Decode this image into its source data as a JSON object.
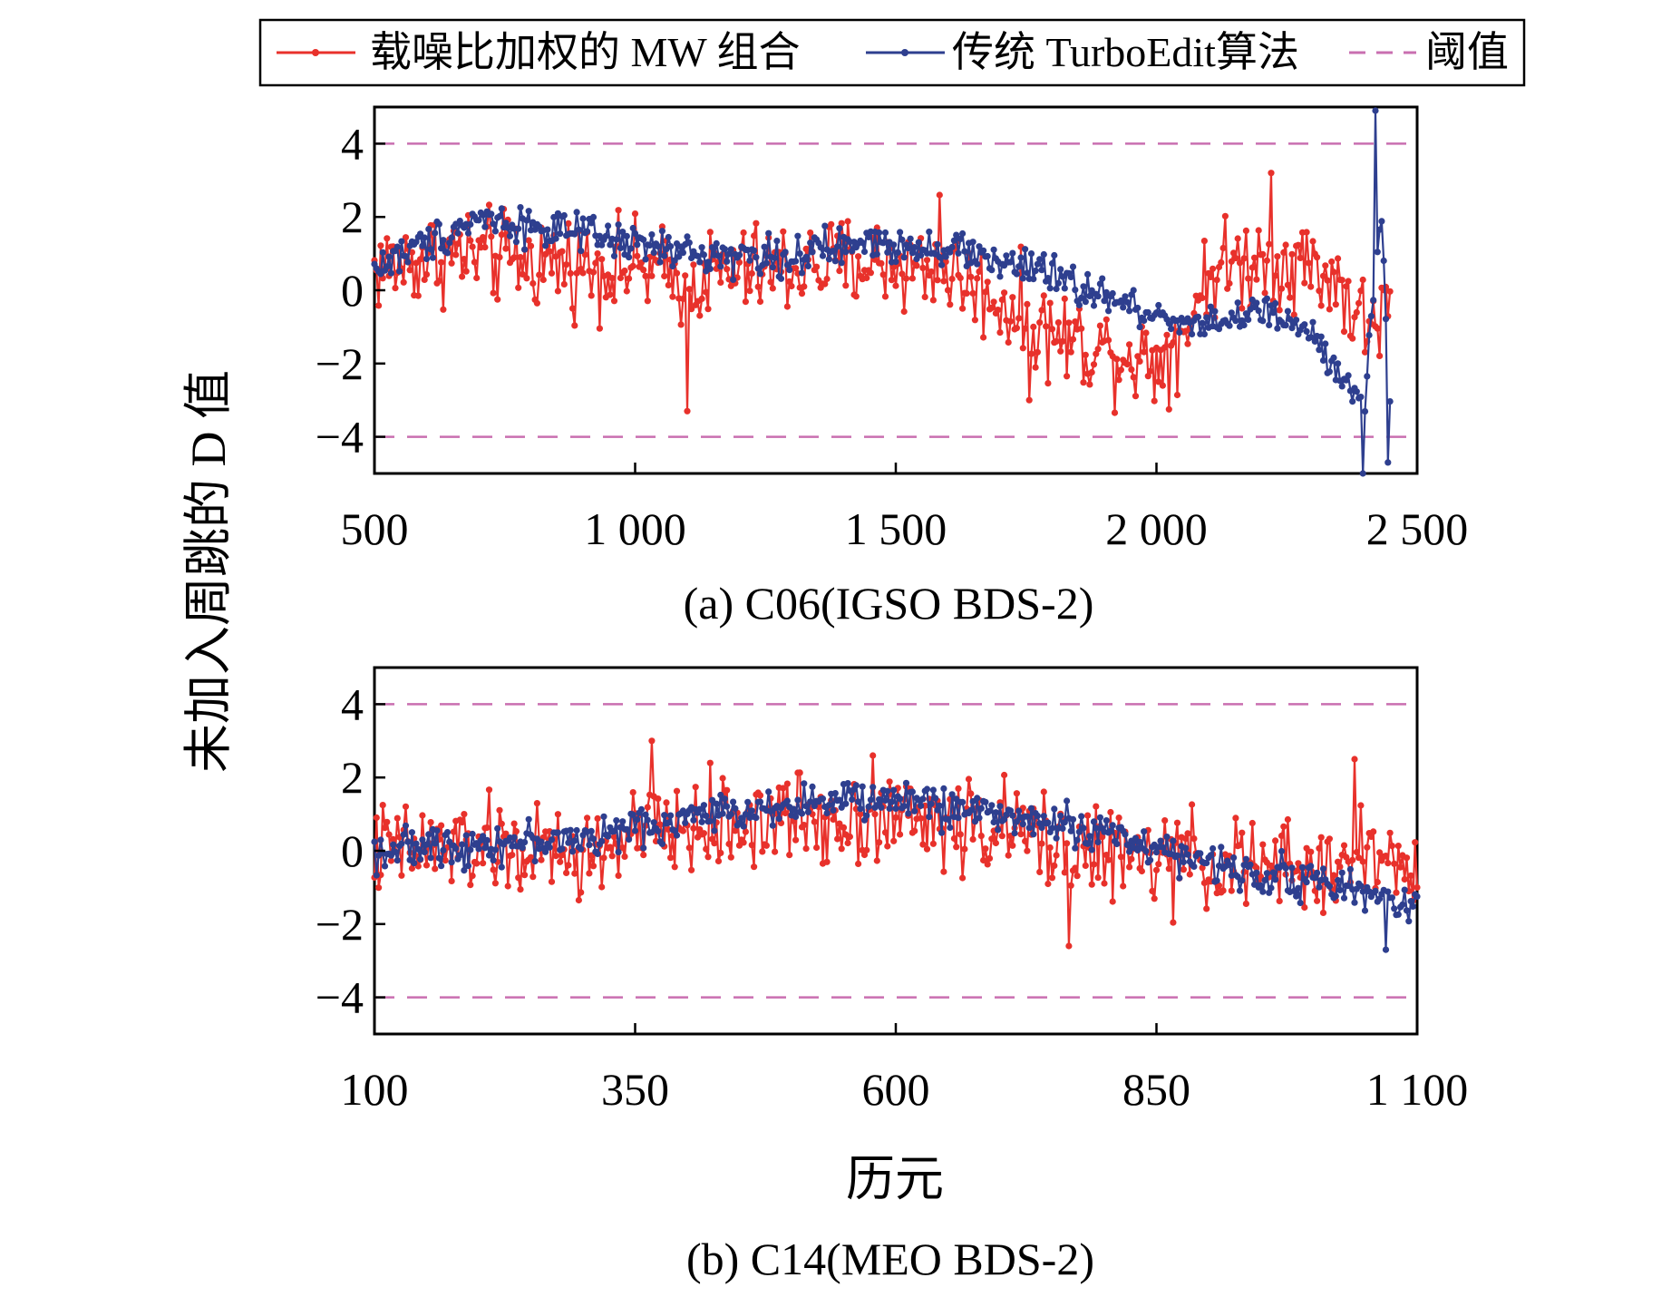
{
  "legend": {
    "items": [
      {
        "label": "载噪比加权的 MW 组合",
        "color": "#e8312b",
        "style": "solid-dot"
      },
      {
        "label": "传统 TurboEdit算法",
        "color": "#2e3f8f",
        "style": "solid-dot"
      },
      {
        "label": "阈值",
        "color": "#c96fb0",
        "style": "dashed"
      }
    ]
  },
  "y_axis_title": "未加入周跳的 D 值",
  "x_axis_title": "历元",
  "chart_data": [
    {
      "type": "line",
      "caption": "(a) C06(IGSO BDS-2)",
      "x_range": [
        500,
        2500
      ],
      "y_range": [
        -5,
        5
      ],
      "xticks": [
        500,
        1000,
        1500,
        2000,
        2500
      ],
      "xtick_labels": [
        "500",
        "1 000",
        "1 500",
        "2 000",
        "2 500"
      ],
      "yticks": [
        4,
        2,
        0,
        -2,
        -4
      ],
      "ytick_labels": [
        "4",
        "2",
        "0",
        "−2",
        "−4"
      ],
      "thresholds": [
        4,
        -4
      ],
      "series": [
        {
          "name": "载噪比加权的 MW 组合",
          "trend_x": [
            500,
            650,
            800,
            1000,
            1100,
            1200,
            1300,
            1450,
            1600,
            1700,
            1800,
            1900,
            2000,
            2050,
            2100,
            2200,
            2300,
            2350,
            2400,
            2450
          ],
          "trend_y": [
            0.6,
            1.0,
            0.8,
            0.6,
            0.3,
            0.5,
            0.6,
            0.8,
            0.5,
            -0.3,
            -1.2,
            -1.6,
            -1.9,
            -1.2,
            0.5,
            0.9,
            0.7,
            0.2,
            -1.0,
            -0.5
          ],
          "spread": 1.1,
          "outliers": [
            [
              1100,
              -3.3
            ],
            [
              1585,
              2.6
            ],
            [
              2220,
              3.2
            ],
            [
              1755,
              -3.0
            ]
          ]
        },
        {
          "name": "传统 TurboEdit算法",
          "trend_x": [
            500,
            600,
            700,
            900,
            1100,
            1300,
            1450,
            1600,
            1700,
            1800,
            1900,
            2000,
            2100,
            2200,
            2300,
            2350,
            2400,
            2430,
            2450
          ],
          "trend_y": [
            0.6,
            1.3,
            2.0,
            1.5,
            1.0,
            0.9,
            1.3,
            1.2,
            0.8,
            0.4,
            -0.2,
            -0.7,
            -0.9,
            -0.6,
            -1.2,
            -2.5,
            -3.0,
            2.0,
            -3.5
          ],
          "spread": 0.45,
          "outliers": [
            [
              2420,
              4.9
            ],
            [
              2445,
              -4.7
            ],
            [
              2395,
              -5.0
            ]
          ]
        }
      ]
    },
    {
      "type": "line",
      "caption": "(b) C14(MEO BDS-2)",
      "x_range": [
        100,
        1100
      ],
      "y_range": [
        -5,
        5
      ],
      "xticks": [
        100,
        350,
        600,
        850,
        1100
      ],
      "xtick_labels": [
        "100",
        "350",
        "600",
        "850",
        "1 100"
      ],
      "yticks": [
        4,
        2,
        0,
        -2,
        -4
      ],
      "ytick_labels": [
        "4",
        "2",
        "0",
        "−2",
        "−4"
      ],
      "thresholds": [
        4,
        -4
      ],
      "series": [
        {
          "name": "载噪比加权的 MW 组合",
          "trend_x": [
            100,
            200,
            300,
            350,
            400,
            500,
            600,
            700,
            800,
            850,
            900,
            1000,
            1050,
            1100
          ],
          "trend_y": [
            0.0,
            0.1,
            -0.2,
            0.4,
            0.6,
            0.9,
            0.9,
            0.6,
            -0.1,
            -0.3,
            -0.3,
            -0.6,
            0.0,
            -0.5
          ],
          "spread": 1.1,
          "outliers": [
            [
              365,
              3.0
            ],
            [
              578,
              2.6
            ],
            [
              765,
              -2.6
            ],
            [
              1040,
              2.5
            ]
          ]
        },
        {
          "name": "传统 TurboEdit算法",
          "trend_x": [
            100,
            200,
            300,
            350,
            400,
            500,
            600,
            700,
            800,
            850,
            900,
            1000,
            1050,
            1100
          ],
          "trend_y": [
            0.0,
            0.2,
            0.3,
            0.6,
            0.9,
            1.3,
            1.4,
            1.0,
            0.5,
            0.1,
            -0.4,
            -0.8,
            -1.2,
            -1.4
          ],
          "spread": 0.45,
          "outliers": [
            [
              1070,
              -2.7
            ]
          ]
        }
      ]
    }
  ]
}
